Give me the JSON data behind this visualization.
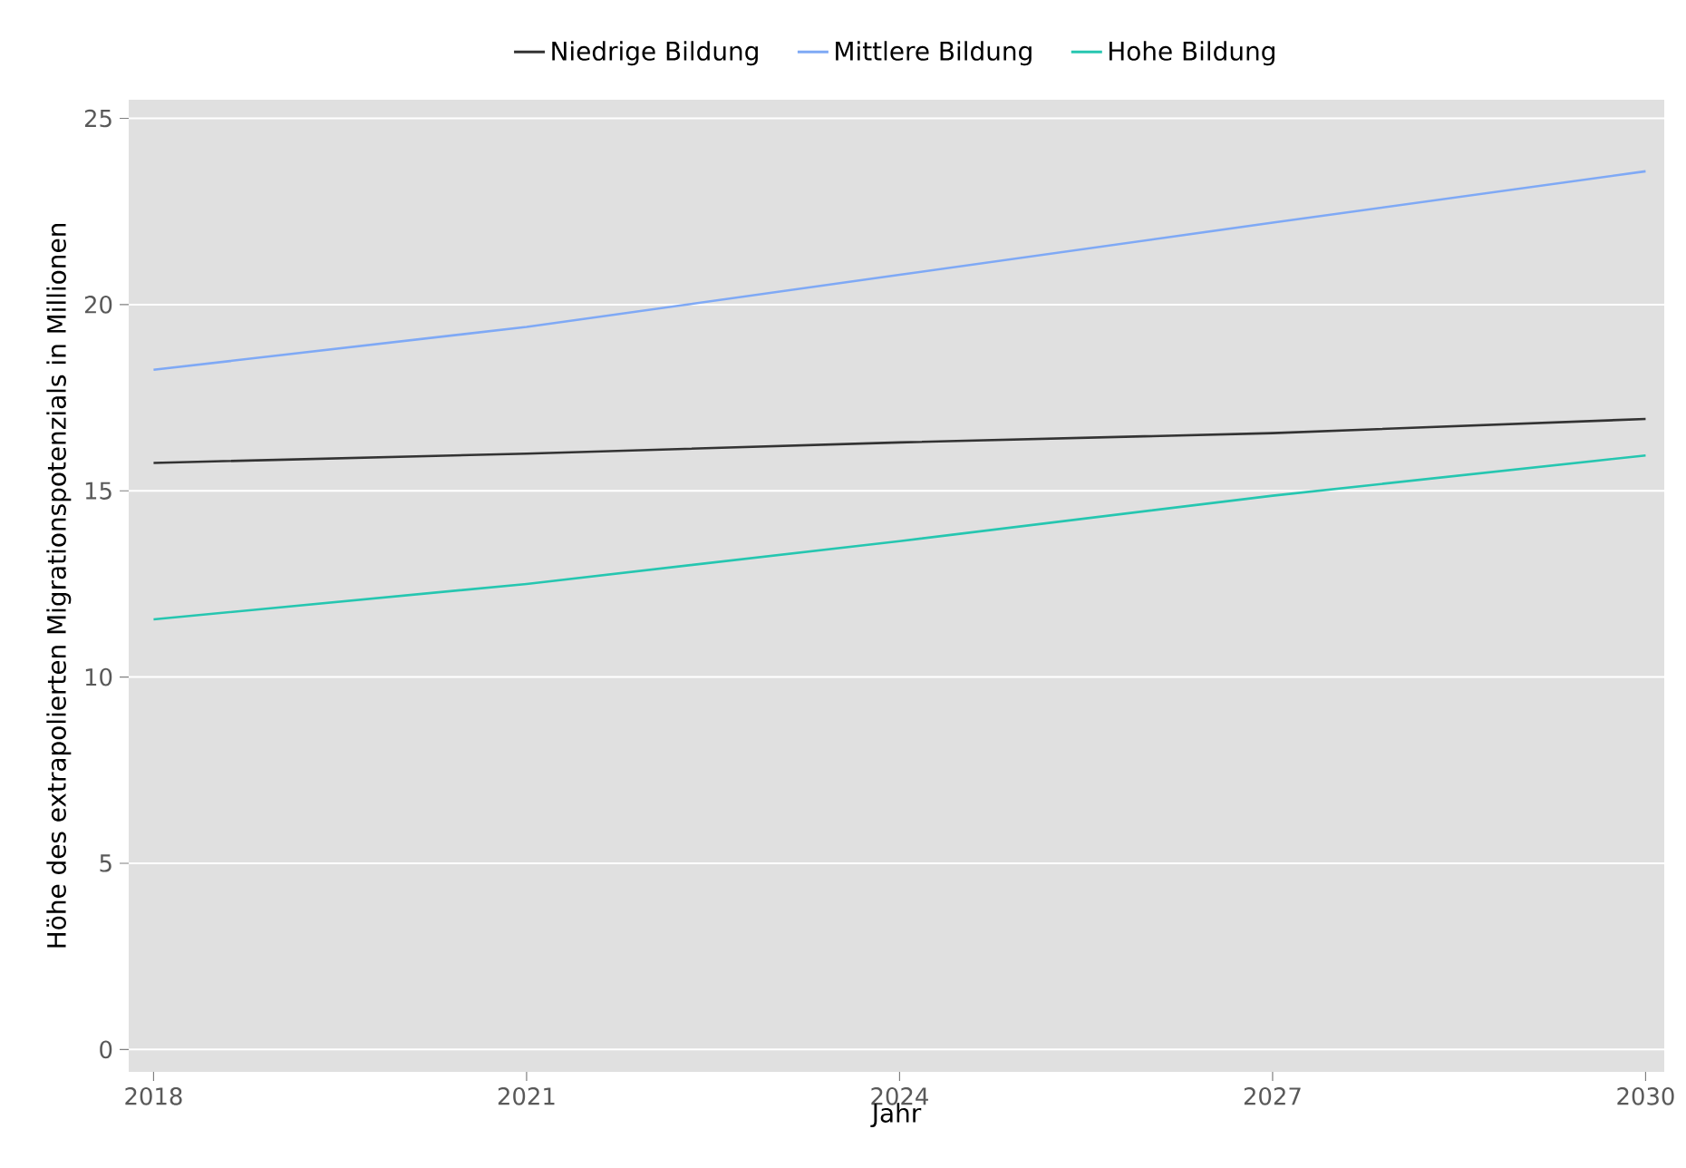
{
  "chart_data": {
    "type": "line",
    "xlabel": "Jahr",
    "ylabel": "Höhe des extrapolierten Migrationspotenzials in Millionen",
    "x": [
      2018,
      2021,
      2024,
      2027,
      2030
    ],
    "series": [
      {
        "name": "Niedrige Bildung",
        "color": "#333333",
        "values": [
          15.75,
          16.0,
          16.3,
          16.55,
          16.93
        ]
      },
      {
        "name": "Mittlere Bildung",
        "color": "#7fa9f5",
        "values": [
          18.25,
          19.4,
          20.8,
          22.2,
          23.58
        ]
      },
      {
        "name": "Hohe Bildung",
        "color": "#26c6b0",
        "values": [
          11.55,
          12.5,
          13.65,
          14.87,
          15.95
        ]
      }
    ],
    "xlim": [
      2017.8,
      2030.15
    ],
    "ylim": [
      -0.6,
      25.5
    ],
    "xticks": [
      2018,
      2021,
      2024,
      2027,
      2030
    ],
    "yticks": [
      0,
      5,
      10,
      15,
      20,
      25
    ],
    "grid": "y",
    "legend": "top",
    "marker": "none",
    "line_style": "solid"
  }
}
